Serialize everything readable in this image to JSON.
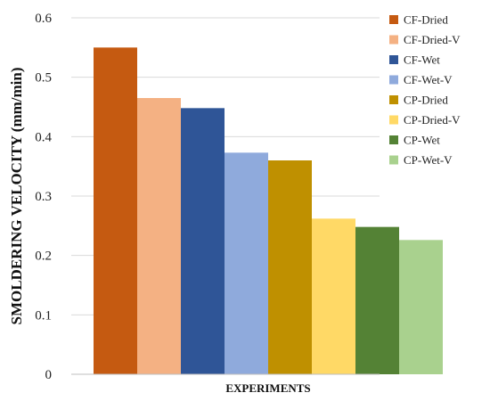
{
  "chart_data": {
    "type": "bar",
    "title": "",
    "xlabel": "EXPERIMENTS",
    "ylabel": "SMOLDERING VELOCITY (mm/min)",
    "ylim": [
      0,
      0.6
    ],
    "yticks": [
      "0",
      "0.1",
      "0.2",
      "0.3",
      "0.4",
      "0.5",
      "0.6"
    ],
    "grid": true,
    "legend_position": "right",
    "series": [
      {
        "name": "CF-Dried",
        "value": 0.55,
        "color": "#c55a11"
      },
      {
        "name": "CF-Dried-V",
        "value": 0.465,
        "color": "#f4b183"
      },
      {
        "name": "CF-Wet",
        "value": 0.448,
        "color": "#2f5597"
      },
      {
        "name": "CF-Wet-V",
        "value": 0.373,
        "color": "#8faadc"
      },
      {
        "name": "CP-Dried",
        "value": 0.36,
        "color": "#bf9000"
      },
      {
        "name": "CP-Dried-V",
        "value": 0.262,
        "color": "#ffd966"
      },
      {
        "name": "CP-Wet",
        "value": 0.248,
        "color": "#548235"
      },
      {
        "name": "CP-Wet-V",
        "value": 0.226,
        "color": "#a9d18e"
      }
    ]
  }
}
